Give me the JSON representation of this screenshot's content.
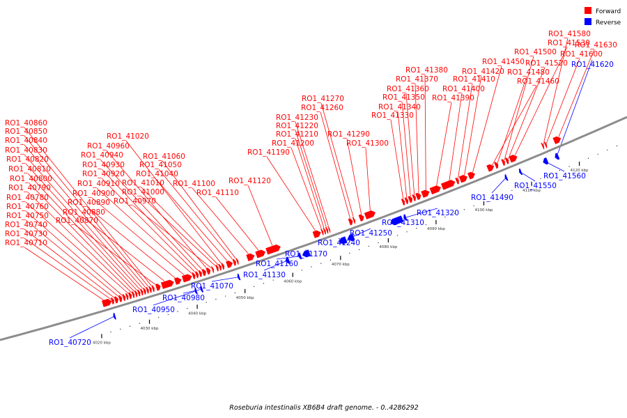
{
  "legend": [
    {
      "label": "Forward",
      "color": "#ff0000"
    },
    {
      "label": "Reverse",
      "color": "#0000ff"
    }
  ],
  "caption": "Roseburia intestinalis XB6B4 draft genome. - 0..4286292",
  "colors": {
    "forward": "#ff0000",
    "reverse": "#0000ff",
    "axis": "#8c8c8c",
    "leader_forward": "#ff0000",
    "leader_reverse": "#0000ff"
  },
  "axis": {
    "unit": "kbp",
    "ticks": [
      {
        "kbp": 4020,
        "label": "4020 kbp"
      },
      {
        "kbp": 4030,
        "label": "4030 kbp"
      },
      {
        "kbp": 4040,
        "label": "4040 kbp"
      },
      {
        "kbp": 4050,
        "label": "4050 kbp"
      },
      {
        "kbp": 4060,
        "label": "4060 kbp"
      },
      {
        "kbp": 4070,
        "label": "4070 kbp"
      },
      {
        "kbp": 4080,
        "label": "4080 kbp"
      },
      {
        "kbp": 4090,
        "label": "4090 kbp"
      },
      {
        "kbp": 4100,
        "label": "4100 kbp"
      },
      {
        "kbp": 4110,
        "label": "4110 kbp"
      },
      {
        "kbp": 4120,
        "label": "4120 kbp"
      }
    ]
  },
  "genes": [
    {
      "id": "RO1_40710",
      "strand": "+",
      "kbp": 4022.0,
      "len": 2.0
    },
    {
      "id": "RO1_40720",
      "strand": "-",
      "kbp": 4023.3,
      "len": 0.5
    },
    {
      "id": "RO1_40730",
      "strand": "+",
      "kbp": 4023.9,
      "len": 0.6
    },
    {
      "id": "RO1_40740",
      "strand": "+",
      "kbp": 4024.6,
      "len": 0.8
    },
    {
      "id": "RO1_40750",
      "strand": "+",
      "kbp": 4025.5,
      "len": 0.7
    },
    {
      "id": "RO1_40760",
      "strand": "+",
      "kbp": 4026.3,
      "len": 0.6
    },
    {
      "id": "RO1_40770",
      "strand": "+",
      "kbp": 4027.0,
      "len": 0.5
    },
    {
      "id": "RO1_40780",
      "strand": "+",
      "kbp": 4027.6,
      "len": 0.6
    },
    {
      "id": "RO1_40790",
      "strand": "+",
      "kbp": 4028.3,
      "len": 0.5
    },
    {
      "id": "RO1_40800",
      "strand": "+",
      "kbp": 4028.9,
      "len": 0.5
    },
    {
      "id": "RO1_40810",
      "strand": "+",
      "kbp": 4029.5,
      "len": 0.5
    },
    {
      "id": "RO1_40820",
      "strand": "+",
      "kbp": 4030.1,
      "len": 0.5
    },
    {
      "id": "RO1_40830",
      "strand": "+",
      "kbp": 4030.7,
      "len": 0.5
    },
    {
      "id": "RO1_40840",
      "strand": "+",
      "kbp": 4031.3,
      "len": 0.5
    },
    {
      "id": "RO1_40850",
      "strand": "+",
      "kbp": 4031.9,
      "len": 0.5
    },
    {
      "id": "RO1_40860",
      "strand": "+",
      "kbp": 4032.5,
      "len": 0.5
    },
    {
      "id": "RO1_40870",
      "strand": "+",
      "kbp": 4033.3,
      "len": 1.0
    },
    {
      "id": "RO1_40880",
      "strand": "+",
      "kbp": 4034.5,
      "len": 2.6
    },
    {
      "id": "RO1_40890",
      "strand": "+",
      "kbp": 4037.3,
      "len": 1.4
    },
    {
      "id": "RO1_40900",
      "strand": "+",
      "kbp": 4038.9,
      "len": 2.0
    },
    {
      "id": "RO1_40910",
      "strand": "+",
      "kbp": 4041.0,
      "len": 0.6
    },
    {
      "id": "RO1_40920",
      "strand": "+",
      "kbp": 4041.7,
      "len": 0.6
    },
    {
      "id": "RO1_40930",
      "strand": "+",
      "kbp": 4042.4,
      "len": 0.6
    },
    {
      "id": "RO1_40940",
      "strand": "+",
      "kbp": 4043.1,
      "len": 0.8
    },
    {
      "id": "RO1_40950",
      "strand": "-",
      "kbp": 4040.4,
      "len": 0.5
    },
    {
      "id": "RO1_40960",
      "strand": "+",
      "kbp": 4044.0,
      "len": 0.8
    },
    {
      "id": "RO1_40970",
      "strand": "+",
      "kbp": 4045.1,
      "len": 0.4
    },
    {
      "id": "RO1_40980",
      "strand": "-",
      "kbp": 4041.6,
      "len": 0.5
    },
    {
      "id": "RO1_41000",
      "strand": "+",
      "kbp": 4046.0,
      "len": 0.5
    },
    {
      "id": "RO1_41010",
      "strand": "+",
      "kbp": 4046.6,
      "len": 0.5
    },
    {
      "id": "RO1_41020",
      "strand": "+",
      "kbp": 4047.2,
      "len": 0.5
    },
    {
      "id": "RO1_41040",
      "strand": "+",
      "kbp": 4048.2,
      "len": 1.3
    },
    {
      "id": "RO1_41050",
      "strand": "+",
      "kbp": 4049.6,
      "len": 0.6
    },
    {
      "id": "RO1_41060",
      "strand": "+",
      "kbp": 4050.3,
      "len": 0.4
    },
    {
      "id": "RO1_41070",
      "strand": "-",
      "kbp": 4049.4,
      "len": 0.5
    },
    {
      "id": "RO1_41100",
      "strand": "+",
      "kbp": 4052.5,
      "len": 1.6
    },
    {
      "id": "RO1_41110",
      "strand": "+",
      "kbp": 4054.4,
      "len": 2.0
    },
    {
      "id": "RO1_41120",
      "strand": "+",
      "kbp": 4056.6,
      "len": 3.0
    },
    {
      "id": "RO1_41130",
      "strand": "-",
      "kbp": 4059.5,
      "len": 0.8
    },
    {
      "id": "RO1_41160",
      "strand": "-",
      "kbp": 4062.2,
      "len": 0.6
    },
    {
      "id": "RO1_41170",
      "strand": "-",
      "kbp": 4063.0,
      "len": 1.6
    },
    {
      "id": "RO1_41190",
      "strand": "+",
      "kbp": 4066.5,
      "len": 1.6
    },
    {
      "id": "RO1_41200",
      "strand": "+",
      "kbp": 4068.2,
      "len": 0.4
    },
    {
      "id": "RO1_41210",
      "strand": "+",
      "kbp": 4068.7,
      "len": 0.4
    },
    {
      "id": "RO1_41220",
      "strand": "+",
      "kbp": 4069.2,
      "len": 0.4
    },
    {
      "id": "RO1_41230",
      "strand": "+",
      "kbp": 4069.7,
      "len": 0.3
    },
    {
      "id": "RO1_41240",
      "strand": "-",
      "kbp": 4070.7,
      "len": 1.6
    },
    {
      "id": "RO1_41250",
      "strand": "-",
      "kbp": 4072.5,
      "len": 1.4
    },
    {
      "id": "RO1_41260",
      "strand": "+",
      "kbp": 4074.0,
      "len": 0.8
    },
    {
      "id": "RO1_41270",
      "strand": "+",
      "kbp": 4074.9,
      "len": 0.4
    },
    {
      "id": "RO1_41290",
      "strand": "+",
      "kbp": 4076.2,
      "len": 1.0
    },
    {
      "id": "RO1_41300",
      "strand": "+",
      "kbp": 4077.4,
      "len": 2.2
    },
    {
      "id": "RO1_41310",
      "strand": "-",
      "kbp": 4081.5,
      "len": 2.6
    },
    {
      "id": "RO1_41320",
      "strand": "-",
      "kbp": 4084.3,
      "len": 0.6
    },
    {
      "id": "RO1_41330",
      "strand": "+",
      "kbp": 4085.2,
      "len": 0.6
    },
    {
      "id": "RO1_41340",
      "strand": "+",
      "kbp": 4085.9,
      "len": 0.6
    },
    {
      "id": "RO1_41350",
      "strand": "+",
      "kbp": 4086.6,
      "len": 0.8
    },
    {
      "id": "RO1_41360",
      "strand": "+",
      "kbp": 4087.5,
      "len": 0.6
    },
    {
      "id": "RO1_41370",
      "strand": "+",
      "kbp": 4088.2,
      "len": 1.0
    },
    {
      "id": "RO1_41380",
      "strand": "+",
      "kbp": 4089.4,
      "len": 1.6
    },
    {
      "id": "RO1_41390",
      "strand": "+",
      "kbp": 4091.2,
      "len": 2.2
    },
    {
      "id": "RO1_41400",
      "strand": "+",
      "kbp": 4093.6,
      "len": 2.8
    },
    {
      "id": "RO1_41410",
      "strand": "+",
      "kbp": 4096.6,
      "len": 0.6
    },
    {
      "id": "RO1_41420",
      "strand": "+",
      "kbp": 4097.4,
      "len": 1.6
    },
    {
      "id": "RO1_41450",
      "strand": "+",
      "kbp": 4099.2,
      "len": 1.4
    },
    {
      "id": "RO1_41460",
      "strand": "+",
      "kbp": 4103.2,
      "len": 1.4
    },
    {
      "id": "RO1_41480",
      "strand": "+",
      "kbp": 4104.8,
      "len": 0.7
    },
    {
      "id": "RO1_41490",
      "strand": "-",
      "kbp": 4105.6,
      "len": 0.5
    },
    {
      "id": "RO1_41500",
      "strand": "+",
      "kbp": 4106.3,
      "len": 0.6
    },
    {
      "id": "RO1_41520",
      "strand": "+",
      "kbp": 4107.1,
      "len": 0.6
    },
    {
      "id": "RO1_41530",
      "strand": "+",
      "kbp": 4107.9,
      "len": 1.6
    },
    {
      "id": "RO1_41550",
      "strand": "-",
      "kbp": 4108.6,
      "len": 0.5
    },
    {
      "id": "RO1_41560",
      "strand": "-",
      "kbp": 4113.6,
      "len": 1.0
    },
    {
      "id": "RO1_41580",
      "strand": "+",
      "kbp": 4114.7,
      "len": 0.4
    },
    {
      "id": "RO1_41600",
      "strand": "+",
      "kbp": 4115.3,
      "len": 0.4
    },
    {
      "id": "RO1_41620",
      "strand": "-",
      "kbp": 4116.1,
      "len": 0.8
    },
    {
      "id": "RO1_41630",
      "strand": "+",
      "kbp": 4117.2,
      "len": 1.5
    }
  ]
}
